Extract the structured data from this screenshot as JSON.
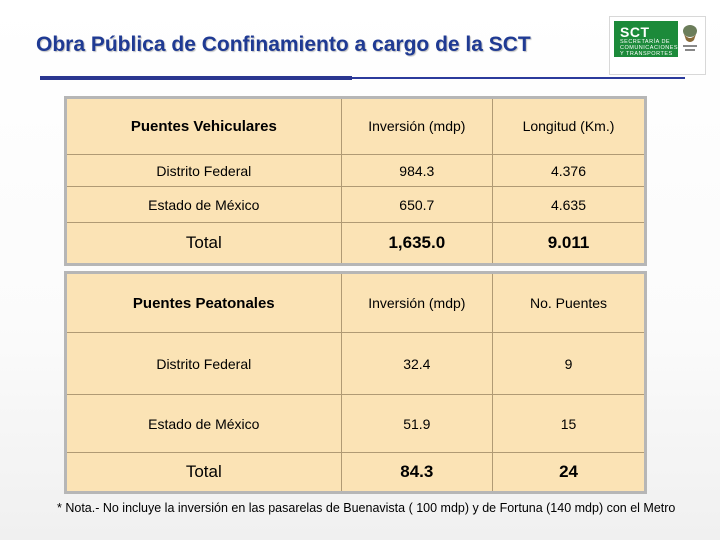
{
  "title": "Obra Pública de Confinamiento a cargo de la SCT",
  "logo": {
    "acronym": "SCT",
    "lines": [
      "SECRETARÍA DE",
      "COMUNICACIONES",
      "Y TRANSPORTES"
    ]
  },
  "table_vehicular": {
    "headers": [
      "Puentes Vehiculares",
      "Inversión (mdp)",
      "Longitud (Km.)"
    ],
    "rows": [
      [
        "Distrito Federal",
        "984.3",
        "4.376"
      ],
      [
        "Estado de México",
        "650.7",
        "4.635"
      ]
    ],
    "total": [
      "Total",
      "1,635.0",
      "9.011"
    ]
  },
  "table_peatonal": {
    "headers": [
      "Puentes Peatonales",
      "Inversión (mdp)",
      "No. Puentes"
    ],
    "rows": [
      [
        "Distrito Federal",
        "32.4",
        "9"
      ],
      [
        "Estado de México",
        "51.9",
        "15"
      ]
    ],
    "total": [
      "Total",
      "84.3",
      "24"
    ]
  },
  "note": "* Nota.- No incluye la inversión en las pasarelas de Buenavista ( 100 mdp) y de Fortuna (140 mdp) con el Metro",
  "colors": {
    "title": "#1f3a93",
    "table_fill": "#fbe3b5",
    "logo_green": "#1c8a3a"
  }
}
